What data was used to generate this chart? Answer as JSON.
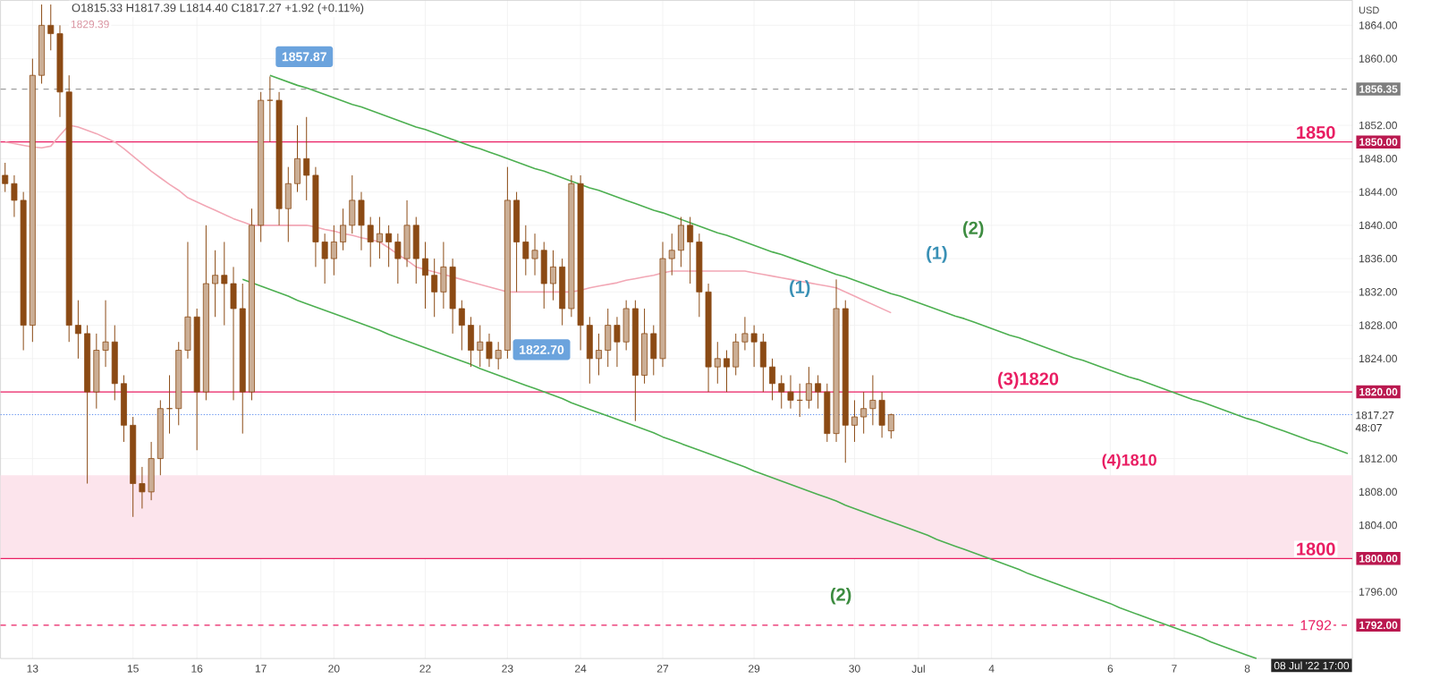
{
  "chart_data": {
    "type": "candlestick",
    "title": "O1815.33 H1817.39 L1814.40 C1817.27 +1.92 (+0.11%)",
    "categories": [
      null,
      null,
      null,
      "13",
      null,
      null,
      null,
      null,
      null,
      null,
      null,
      null,
      null,
      null,
      "15",
      null,
      null,
      null,
      null,
      null,
      null,
      "16",
      null,
      null,
      null,
      null,
      null,
      null,
      "17",
      null,
      null,
      null,
      null,
      null,
      null,
      null,
      "20",
      null,
      null,
      null,
      null,
      null,
      null,
      null,
      null,
      null,
      "22",
      null,
      null,
      null,
      null,
      null,
      null,
      null,
      null,
      "23",
      null,
      null,
      null,
      null,
      null,
      null,
      null,
      "24",
      null,
      null,
      null,
      null,
      null,
      null,
      null,
      null,
      "27",
      null,
      null,
      null,
      null,
      null,
      null,
      null,
      null,
      null,
      "29",
      null,
      null,
      null,
      null,
      null,
      null,
      null,
      null,
      null,
      null,
      "30",
      null,
      null,
      null,
      null,
      null,
      null,
      "Jul",
      null,
      null,
      null,
      null,
      null,
      null,
      null,
      "4",
      null,
      null,
      null,
      null,
      null,
      null,
      null,
      null,
      null,
      null,
      null,
      null,
      "6",
      null,
      null,
      null,
      null,
      null,
      null,
      "7",
      null,
      null,
      null,
      null,
      null,
      null,
      null,
      "8",
      null,
      null,
      null,
      null,
      null,
      null,
      null,
      null,
      null,
      null,
      null
    ],
    "ylim": [
      1788,
      1867
    ],
    "yticks": [
      {
        "value": 1796,
        "label": "1796.00"
      },
      {
        "value": 1804,
        "label": "1804.00"
      },
      {
        "value": 1808,
        "label": "1808.00"
      },
      {
        "value": 1812,
        "label": "1812.00"
      },
      {
        "value": 1824,
        "label": "1824.00"
      },
      {
        "value": 1828,
        "label": "1828.00"
      },
      {
        "value": 1832,
        "label": "1832.00"
      },
      {
        "value": 1836,
        "label": "1836.00"
      },
      {
        "value": 1840,
        "label": "1840.00"
      },
      {
        "value": 1844,
        "label": "1844.00"
      },
      {
        "value": 1848,
        "label": "1848.00"
      },
      {
        "value": 1852,
        "label": "1852.00"
      },
      {
        "value": 1860,
        "label": "1860.00"
      },
      {
        "value": 1864,
        "label": "1864.00"
      }
    ],
    "grid": true,
    "series": [
      {
        "color": "#8b4a14",
        "ohlc": [
          [
            1846,
            1847.5,
            1844,
            1845
          ],
          [
            1845,
            1846,
            1841,
            1843
          ],
          [
            1843,
            1844,
            1825,
            1828
          ],
          [
            1828,
            1860,
            1826,
            1858
          ],
          [
            1858,
            1866.5,
            1857,
            1864
          ],
          [
            1864,
            1866.5,
            1861,
            1863
          ],
          [
            1863,
            1864,
            1853,
            1856
          ],
          [
            1856,
            1858,
            1826,
            1828
          ],
          [
            1828,
            1831,
            1824,
            1827
          ],
          [
            1827,
            1828,
            1809,
            1820
          ],
          [
            1820,
            1827,
            1818,
            1825
          ],
          [
            1825,
            1831,
            1823,
            1826
          ],
          [
            1826,
            1828,
            1819,
            1821
          ],
          [
            1821,
            1822,
            1814,
            1816
          ],
          [
            1816,
            1817,
            1805,
            1809
          ],
          [
            1809,
            1811,
            1806,
            1808
          ],
          [
            1808,
            1814,
            1807,
            1812
          ],
          [
            1812,
            1819,
            1810,
            1818
          ],
          [
            1818,
            1822,
            1815,
            1818
          ],
          [
            1818,
            1826,
            1816,
            1825
          ],
          [
            1825,
            1838,
            1824,
            1829
          ],
          [
            1829,
            1830,
            1813,
            1820
          ],
          [
            1820,
            1840,
            1819,
            1833
          ],
          [
            1833,
            1837,
            1829,
            1834
          ],
          [
            1834,
            1838,
            1828,
            1833
          ],
          [
            1833,
            1835,
            1819,
            1830
          ],
          [
            1830,
            1833,
            1815,
            1820
          ],
          [
            1820,
            1842,
            1819,
            1840
          ],
          [
            1840,
            1856,
            1838,
            1855
          ],
          [
            1855,
            1857.87,
            1850,
            1855
          ],
          [
            1855,
            1856,
            1840,
            1842
          ],
          [
            1842,
            1847,
            1838,
            1845
          ],
          [
            1845,
            1852,
            1844,
            1848
          ],
          [
            1848,
            1853,
            1843,
            1846
          ],
          [
            1846,
            1847,
            1835,
            1838
          ],
          [
            1838,
            1839,
            1833,
            1836
          ],
          [
            1836,
            1840,
            1834,
            1838
          ],
          [
            1838,
            1842,
            1837,
            1840
          ],
          [
            1840,
            1846,
            1839,
            1843
          ],
          [
            1843,
            1844,
            1837,
            1840
          ],
          [
            1840,
            1841,
            1835,
            1838
          ],
          [
            1838,
            1841,
            1836,
            1839
          ],
          [
            1839,
            1840,
            1835,
            1838
          ],
          [
            1838,
            1839,
            1833,
            1836
          ],
          [
            1836,
            1843,
            1835,
            1840
          ],
          [
            1840,
            1841,
            1833,
            1836
          ],
          [
            1836,
            1838,
            1830,
            1834
          ],
          [
            1834,
            1836,
            1829,
            1832
          ],
          [
            1832,
            1838,
            1830,
            1835
          ],
          [
            1835,
            1836,
            1827,
            1830
          ],
          [
            1830,
            1831,
            1825,
            1828
          ],
          [
            1828,
            1829,
            1823,
            1825
          ],
          [
            1825,
            1828,
            1823,
            1826
          ],
          [
            1826,
            1827,
            1823,
            1824
          ],
          [
            1824,
            1826,
            1822.7,
            1825
          ],
          [
            1825,
            1847,
            1824,
            1843
          ],
          [
            1843,
            1844,
            1832,
            1838
          ],
          [
            1838,
            1840,
            1834,
            1836
          ],
          [
            1836,
            1839,
            1834,
            1837
          ],
          [
            1837,
            1838,
            1830,
            1833
          ],
          [
            1833,
            1837,
            1831,
            1835
          ],
          [
            1835,
            1836,
            1828,
            1830
          ],
          [
            1830,
            1846,
            1829,
            1845
          ],
          [
            1845,
            1846,
            1825,
            1828
          ],
          [
            1828,
            1829,
            1821,
            1824
          ],
          [
            1824,
            1827,
            1822,
            1825
          ],
          [
            1825,
            1830,
            1823,
            1828
          ],
          [
            1828,
            1829,
            1823,
            1826
          ],
          [
            1826,
            1831,
            1825,
            1830
          ],
          [
            1830,
            1831,
            1816.5,
            1822
          ],
          [
            1822,
            1830,
            1821,
            1827
          ],
          [
            1827,
            1828,
            1822,
            1824
          ],
          [
            1824,
            1838,
            1823,
            1836
          ],
          [
            1836,
            1839,
            1834,
            1837
          ],
          [
            1837,
            1841,
            1835,
            1840
          ],
          [
            1840,
            1841,
            1833,
            1838
          ],
          [
            1838,
            1839,
            1829,
            1832
          ],
          [
            1832,
            1833,
            1820,
            1823
          ],
          [
            1823,
            1826,
            1821,
            1824
          ],
          [
            1824,
            1825,
            1820,
            1823
          ],
          [
            1823,
            1827,
            1822,
            1826
          ],
          [
            1826,
            1829,
            1825,
            1827
          ],
          [
            1827,
            1828,
            1823,
            1826
          ],
          [
            1826,
            1827,
            1820,
            1823
          ],
          [
            1823,
            1824,
            1819,
            1821
          ],
          [
            1821,
            1822,
            1818,
            1820
          ],
          [
            1820,
            1822,
            1818,
            1819
          ],
          [
            1819,
            1821,
            1817,
            1819
          ],
          [
            1819,
            1823,
            1818,
            1821
          ],
          [
            1821,
            1822,
            1818,
            1820
          ],
          [
            1820,
            1821,
            1814,
            1815
          ],
          [
            1815,
            1833.5,
            1814,
            1830
          ],
          [
            1830,
            1831,
            1811.5,
            1816
          ],
          [
            1816,
            1819,
            1814,
            1817
          ],
          [
            1817,
            1820,
            1815,
            1818
          ],
          [
            1818,
            1822,
            1816,
            1819
          ],
          [
            1819,
            1820,
            1814.5,
            1816
          ],
          [
            1815.33,
            1817.39,
            1814.4,
            1817.27
          ],
          null,
          null,
          null,
          null,
          null,
          null,
          null,
          null,
          null,
          null,
          null,
          null,
          null,
          null,
          null,
          null,
          null,
          null,
          null,
          null,
          null,
          null,
          null,
          null,
          null,
          null,
          null,
          null,
          null,
          null,
          null,
          null,
          null,
          null,
          null,
          null,
          null,
          null,
          null,
          null,
          null,
          null,
          null,
          null,
          null,
          null,
          null,
          null,
          null,
          null
        ]
      },
      {
        "type": "line",
        "color": "#f2a7b5",
        "values": [
          1850,
          1849.8,
          1849.6,
          1849.4,
          1849.3,
          1849.5,
          1850.8,
          1852,
          1851.8,
          1851.4,
          1851,
          1850.5,
          1850,
          1849.2,
          1848.3,
          1847.4,
          1846.5,
          1845.7,
          1844.9,
          1844.2,
          1843.3,
          1842.8,
          1842.3,
          1841.8,
          1841.3,
          1840.8,
          1840.4,
          1840,
          1840,
          1840,
          1840,
          1840,
          1840,
          1840,
          1839.8,
          1839.5,
          1839.3,
          1839,
          1838.8,
          1838.5,
          1838.3,
          1838,
          1837.3,
          1836.5,
          1835.8,
          1835,
          1834.7,
          1834.4,
          1834.1,
          1833.8,
          1833.5,
          1833.2,
          1832.9,
          1832.6,
          1832.3,
          1832,
          1832,
          1832,
          1832,
          1832,
          1832,
          1832,
          1832,
          1832.2,
          1832.5,
          1832.7,
          1832.9,
          1833.1,
          1833.4,
          1833.6,
          1833.8,
          1834,
          1834.3,
          1834.5,
          1834.5,
          1834.5,
          1834.5,
          1834.5,
          1834.5,
          1834.5,
          1834.5,
          1834.5,
          1834.3,
          1834.1,
          1833.9,
          1833.7,
          1833.5,
          1833.3,
          1833.1,
          1832.9,
          1832.7,
          1832.5,
          1832,
          1831.5,
          1831,
          1830.5,
          1830,
          1829.5,
          null,
          null,
          null,
          null,
          null,
          null,
          null,
          null,
          null,
          null,
          null,
          null,
          null,
          null,
          null,
          null,
          null,
          null,
          null,
          null,
          null,
          null,
          null,
          null,
          null,
          null,
          null,
          null,
          null,
          null,
          null,
          null,
          null,
          null,
          null,
          null,
          null,
          null,
          null,
          null,
          null,
          null,
          null,
          null,
          null,
          null,
          null,
          null,
          null,
          null
        ]
      },
      {
        "type": "line",
        "color": "#4caf50",
        "values": [
          null,
          null,
          null,
          null,
          null,
          null,
          null,
          null,
          null,
          null,
          null,
          null,
          null,
          null,
          null,
          null,
          null,
          null,
          null,
          null,
          null,
          null,
          null,
          null,
          null,
          null,
          null,
          null,
          null,
          1858.0,
          1857.6,
          1857.2,
          1856.8,
          1856.5,
          1856.1,
          1855.7,
          1855.3,
          1854.9,
          1854.5,
          1854.2,
          1853.8,
          1853.4,
          1853.0,
          1852.6,
          1852.2,
          1851.8,
          1851.5,
          1851.1,
          1850.7,
          1850.3,
          1849.9,
          1849.5,
          1849.2,
          1848.8,
          1848.4,
          1848.0,
          1847.6,
          1847.2,
          1846.8,
          1846.5,
          1846.1,
          1845.7,
          1845.3,
          1844.9,
          1844.5,
          1844.2,
          1843.8,
          1843.4,
          1843.0,
          1842.6,
          1842.2,
          1841.8,
          1841.5,
          1841.1,
          1840.7,
          1840.3,
          1839.9,
          1839.5,
          1839.1,
          1838.8,
          1838.4,
          1838.0,
          1837.6,
          1837.2,
          1836.8,
          1836.5,
          1836.1,
          1835.7,
          1835.3,
          1834.9,
          1834.5,
          1834.1,
          1833.8,
          1833.4,
          1833.0,
          1832.6,
          1832.2,
          1831.8,
          1831.5,
          1831.1,
          1830.7,
          1830.3,
          1829.9,
          1829.5,
          1829.1,
          1828.8,
          1828.4,
          1828.0,
          1827.6,
          1827.2,
          1826.8,
          1826.5,
          1826.1,
          1825.7,
          1825.3,
          1824.9,
          1824.5,
          1824.1,
          1823.8,
          1823.4,
          1823.0,
          1822.6,
          1822.2,
          1821.8,
          1821.5,
          1821.1,
          1820.7,
          1820.3,
          1819.9,
          1819.5,
          1819.1,
          1818.8,
          1818.4,
          1818.0,
          1817.6,
          1817.2,
          1816.8,
          1816.5,
          1816.1,
          1815.7,
          1815.3,
          1814.9,
          1814.5,
          1814.1,
          1813.8,
          1813.4,
          1813.0,
          1812.6
        ]
      },
      {
        "type": "line",
        "color": "#4caf50",
        "values": [
          null,
          null,
          null,
          null,
          null,
          null,
          null,
          null,
          null,
          null,
          null,
          null,
          null,
          null,
          null,
          null,
          null,
          null,
          null,
          null,
          null,
          null,
          null,
          null,
          null,
          null,
          1833.5,
          1833.1,
          1832.7,
          1832.3,
          1831.9,
          1831.5,
          1831.0,
          1830.6,
          1830.2,
          1829.8,
          1829.4,
          1829.0,
          1828.6,
          1828.2,
          1827.8,
          1827.4,
          1826.9,
          1826.5,
          1826.1,
          1825.7,
          1825.3,
          1824.9,
          1824.5,
          1824.1,
          1823.7,
          1823.3,
          1822.8,
          1822.4,
          1822.0,
          1821.6,
          1821.2,
          1820.8,
          1820.4,
          1820.0,
          1819.6,
          1819.2,
          1818.7,
          1818.3,
          1817.9,
          1817.5,
          1817.1,
          1816.7,
          1816.3,
          1815.9,
          1815.5,
          1815.1,
          1814.6,
          1814.2,
          1813.8,
          1813.4,
          1813.0,
          1812.6,
          1812.2,
          1811.8,
          1811.4,
          1811.0,
          1810.5,
          1810.1,
          1809.7,
          1809.3,
          1808.9,
          1808.5,
          1808.1,
          1807.7,
          1807.3,
          1806.9,
          1806.4,
          1806.0,
          1805.6,
          1805.2,
          1804.8,
          1804.4,
          1804.0,
          1803.6,
          1803.2,
          1802.8,
          1802.3,
          1801.9,
          1801.5,
          1801.1,
          1800.7,
          1800.3,
          1799.9,
          1799.5,
          1799.1,
          1798.7,
          1798.2,
          1797.8,
          1797.4,
          1797.0,
          1796.6,
          1796.2,
          1795.8,
          1795.4,
          1795.0,
          1794.6,
          1794.1,
          1793.7,
          1793.3,
          1792.9,
          1792.5,
          1792.1,
          1791.7,
          1791.3,
          1790.9,
          1790.5,
          1790.0,
          1789.6,
          1789.2,
          1788.8,
          1788.4,
          1788.0,
          null,
          null,
          null,
          null,
          null,
          null,
          null,
          null,
          null,
          null
        ]
      }
    ],
    "ref_lines": [
      {
        "axis": "y",
        "value": 1856.35,
        "label": "1856.35",
        "color": "#9e9e9e",
        "line_style": "dashed"
      },
      {
        "axis": "y",
        "value": 1850,
        "label": "1850.00",
        "color": "#e91e63",
        "line_style": "solid"
      },
      {
        "axis": "y",
        "value": 1820,
        "label": "1820.00",
        "color": "#e91e63",
        "line_style": "solid"
      },
      {
        "axis": "y",
        "value": 1817.27,
        "label": "1817.27 48:07",
        "color": "#5b8def",
        "line_style": "dotted"
      },
      {
        "axis": "y",
        "value": 1800,
        "label": "1800.00",
        "color": "#e91e63",
        "line_style": "solid"
      },
      {
        "axis": "y",
        "value": 1792,
        "label": "1792.00",
        "color": "#e91e63",
        "line_style": "dashed"
      }
    ],
    "bands": [
      {
        "axis": "y",
        "from": 1800,
        "to": 1810,
        "label": "(4)1810",
        "color": "#fce4ec"
      }
    ],
    "annotations": [
      "1829.39",
      "USD",
      "08 Jul '22 17:00",
      {
        "text": "1850",
        "y": 1850
      },
      {
        "text": "(3)1820",
        "y": 1820
      },
      {
        "text": "1800",
        "y": 1800
      },
      {
        "text": "1792",
        "y": 1792
      },
      "1857.87",
      "1822.70",
      "(1)",
      "(1)",
      "(2)",
      "(2)"
    ]
  }
}
